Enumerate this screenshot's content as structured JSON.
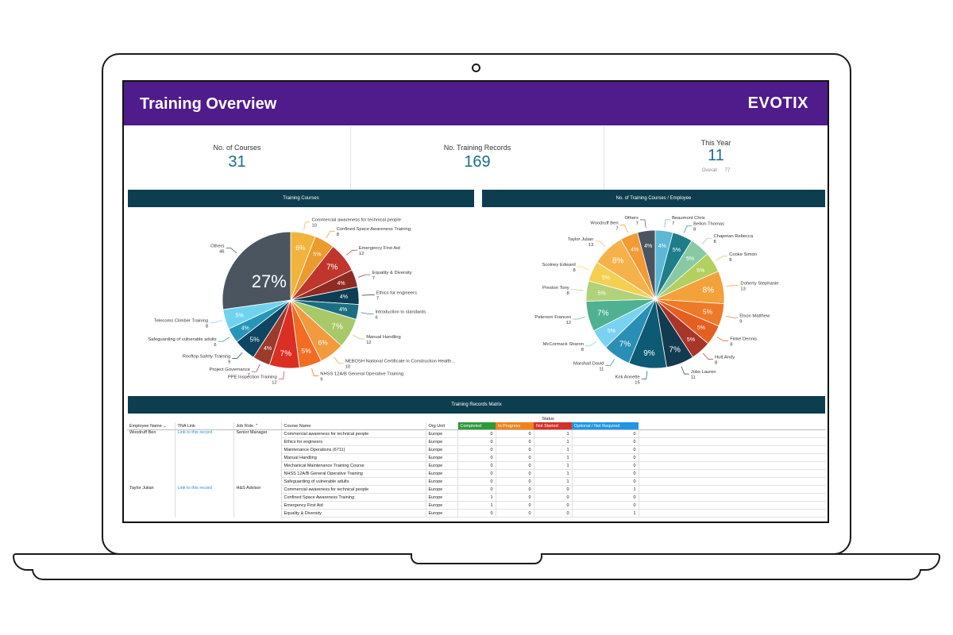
{
  "header": {
    "title": "Training Overview",
    "logo": "EVOTIX"
  },
  "kpis": {
    "courses": {
      "label": "No. of Courses",
      "value": "31"
    },
    "records": {
      "label": "No. Training Records",
      "value": "169"
    },
    "this_year": {
      "label": "This Year",
      "value": "11",
      "overall_label": "Overall",
      "overall_value": "77"
    }
  },
  "panels": {
    "courses_title": "Training Courses",
    "employees_title": "No. of Training Courses / Employee",
    "matrix_title": "Training Records Matrix"
  },
  "colors": {
    "header": "#501b8b",
    "panel": "#0d3e50",
    "kpi_value": "#1b6f86",
    "link": "#2b8dc5"
  },
  "chart_data": [
    {
      "type": "pie",
      "title": "Training Courses",
      "slices": [
        {
          "label": "Commercial awareness for technical people",
          "value": 10,
          "pct": "6%",
          "color": "#f2b33d"
        },
        {
          "label": "Confined Space Awareness Training",
          "value": 8,
          "pct": "5%",
          "color": "#eb9a2d"
        },
        {
          "label": "Emergency First Aid",
          "value": 12,
          "pct": "7%",
          "color": "#c0362c"
        },
        {
          "label": "Equality & Diversity",
          "value": 7,
          "pct": "4%",
          "color": "#8f2b22"
        },
        {
          "label": "Ethics for engineers",
          "value": 7,
          "pct": "4%",
          "color": "#0f3e54"
        },
        {
          "label": "Introduction to standards",
          "value": 6,
          "pct": "4%",
          "color": "#1a6f82"
        },
        {
          "label": "Manual Handling",
          "value": 12,
          "pct": "7%",
          "color": "#a8c86a"
        },
        {
          "label": "NEBOSH National Certificate in Construction Health...",
          "value": 10,
          "pct": "6%",
          "color": "#f39a3e"
        },
        {
          "label": "NHSS 12A/B General Operative Training",
          "value": 9,
          "pct": "5%",
          "color": "#f26d22"
        },
        {
          "label": "PPE Inspection Training",
          "value": 12,
          "pct": "7%",
          "color": "#da2f22"
        },
        {
          "label": "Project Governance",
          "value": 7,
          "pct": "4%",
          "color": "#9c3a2b"
        },
        {
          "label": "Rooftop Safety Training",
          "value": 9,
          "pct": "5%",
          "color": "#0d4563"
        },
        {
          "label": "Safeguarding of vulnerable adults",
          "value": 6,
          "pct": "4%",
          "color": "#2596b8"
        },
        {
          "label": "Telecoms Climber Training",
          "value": 8,
          "pct": "5%",
          "color": "#6fd3ef"
        },
        {
          "label": "Others",
          "value": 46,
          "pct": "27%",
          "color": "#4a5560"
        }
      ]
    },
    {
      "type": "pie",
      "title": "No. of Training Courses / Employee",
      "slices": [
        {
          "label": "Beaumont Chris",
          "value": 7,
          "pct": "4%",
          "color": "#5bb8d6"
        },
        {
          "label": "Belton Thomas",
          "value": 8,
          "pct": "5%",
          "color": "#1f7d8a"
        },
        {
          "label": "Chapman Rebecca",
          "value": 8,
          "pct": "5%",
          "color": "#88c9a4"
        },
        {
          "label": "Cooke Simon",
          "value": 8,
          "pct": "5%",
          "color": "#b3cf5e"
        },
        {
          "label": "Doherty Stephanie",
          "value": 13,
          "pct": "8%",
          "color": "#f3a13b"
        },
        {
          "label": "Elson Matthew",
          "value": 9,
          "pct": "5%",
          "color": "#ee7a27"
        },
        {
          "label": "Finke Dennis",
          "value": 8,
          "pct": "5%",
          "color": "#e55f20"
        },
        {
          "label": "Hutt Andy",
          "value": 8,
          "pct": "5%",
          "color": "#a9342a"
        },
        {
          "label": "Jobs Lauren",
          "value": 11,
          "pct": "7%",
          "color": "#123b4f"
        },
        {
          "label": "Kirk Annette",
          "value": 15,
          "pct": "9%",
          "color": "#0c5a73"
        },
        {
          "label": "Marshall David",
          "value": 11,
          "pct": "7%",
          "color": "#2a8fb4"
        },
        {
          "label": "McCormack Sharon",
          "value": 8,
          "pct": "5%",
          "color": "#79d2ef"
        },
        {
          "label": "Paterson Frances",
          "value": 12,
          "pct": "7%",
          "color": "#4fb191"
        },
        {
          "label": "Preston Tony",
          "value": 8,
          "pct": "5%",
          "color": "#b2d27a"
        },
        {
          "label": "Scotney Edward",
          "value": 8,
          "pct": "5%",
          "color": "#f5cf52"
        },
        {
          "label": "Taylor Julian",
          "value": 13,
          "pct": "8%",
          "color": "#f6b24a"
        },
        {
          "label": "Woodruff Ben",
          "value": 7,
          "pct": "4%",
          "color": "#f39a35"
        },
        {
          "label": "Others",
          "value": 7,
          "pct": "4%",
          "color": "#4a5560"
        }
      ]
    }
  ],
  "matrix": {
    "status_title": "Status",
    "columns": [
      "Employee Name",
      "TNA Link",
      "Job Role",
      "Course Name",
      "Org Unit"
    ],
    "status_columns": [
      "Completed",
      "In Progress",
      "Not Started",
      "Optional / Not Required"
    ],
    "groups": [
      {
        "employee": "Woodruff Ben",
        "link": "Link to this record",
        "role": "Senior Manager",
        "rows": [
          {
            "course": "Commercial awareness for technical people",
            "org": "Europe",
            "s": [
              "0",
              "0",
              "1",
              "0"
            ]
          },
          {
            "course": "Ethics for engineers",
            "org": "Europe",
            "s": [
              "0",
              "0",
              "1",
              "0"
            ]
          },
          {
            "course": "Maintenance Operations (6711)",
            "org": "Europe",
            "s": [
              "0",
              "0",
              "1",
              "0"
            ]
          },
          {
            "course": "Manual Handling",
            "org": "Europe",
            "s": [
              "0",
              "0",
              "1",
              "0"
            ]
          },
          {
            "course": "Mechanical Maintenance Training Course",
            "org": "Europe",
            "s": [
              "0",
              "0",
              "1",
              "0"
            ]
          },
          {
            "course": "NHSS 12A/B General Operative Training",
            "org": "Europe",
            "s": [
              "0",
              "0",
              "1",
              "0"
            ]
          },
          {
            "course": "Safeguarding of vulnerable adults",
            "org": "Europe",
            "s": [
              "0",
              "0",
              "1",
              "0"
            ]
          }
        ]
      },
      {
        "employee": "Taylor Julian",
        "link": "Link to this record",
        "role": "H&S Advisor",
        "rows": [
          {
            "course": "Commercial awareness for technical people",
            "org": "Europe",
            "s": [
              "0",
              "0",
              "0",
              "1"
            ]
          },
          {
            "course": "Confined Space Awareness Training",
            "org": "Europe",
            "s": [
              "1",
              "0",
              "0",
              "0"
            ]
          },
          {
            "course": "Emergency First Aid",
            "org": "Europe",
            "s": [
              "1",
              "0",
              "0",
              "0"
            ]
          },
          {
            "course": "Equality & Diversity",
            "org": "Europe",
            "s": [
              "0",
              "0",
              "0",
              "1"
            ]
          }
        ]
      }
    ]
  }
}
